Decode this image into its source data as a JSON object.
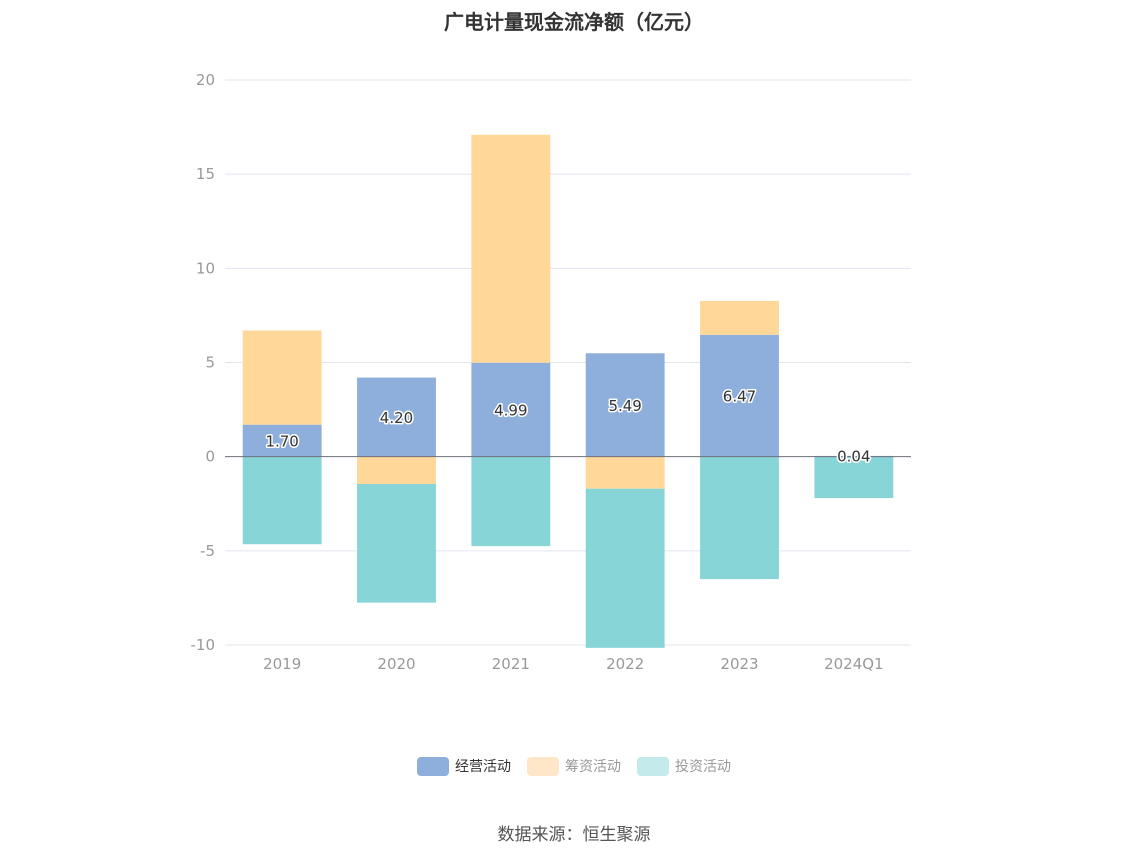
{
  "chart_data": {
    "type": "bar",
    "stacked": true,
    "title": "广电计量现金流净额（亿元）",
    "categories": [
      "2019",
      "2020",
      "2021",
      "2022",
      "2023",
      "2024Q1"
    ],
    "series": [
      {
        "name": "经营活动",
        "color": "#8eaedb",
        "values": [
          1.7,
          4.2,
          4.99,
          5.49,
          6.47,
          0.04
        ]
      },
      {
        "name": "筹资活动",
        "color": "#ffd899",
        "values": [
          5.0,
          -1.45,
          12.1,
          -1.7,
          1.8,
          0.0
        ]
      },
      {
        "name": "投资活动",
        "color": "#88d5d8",
        "values": [
          -4.65,
          -6.3,
          -4.75,
          -8.45,
          -6.5,
          -2.2
        ]
      }
    ],
    "data_label_series": "经营活动",
    "ylim": [
      -10,
      20
    ],
    "yticks": [
      -10,
      -5,
      0,
      5,
      10,
      15,
      20
    ],
    "grid": true,
    "legend_position": "bottom"
  },
  "legend": {
    "items": [
      {
        "label": "经营活动",
        "color": "#8eaedb",
        "swatch": "#8eaedb",
        "text_color": "#333333"
      },
      {
        "label": "筹资活动",
        "color": "#ffd899",
        "swatch": "#fde7c8",
        "text_color": "#999999"
      },
      {
        "label": "投资活动",
        "color": "#88d5d8",
        "swatch": "#c4eaec",
        "text_color": "#999999"
      }
    ]
  },
  "source": "数据来源：恒生聚源"
}
